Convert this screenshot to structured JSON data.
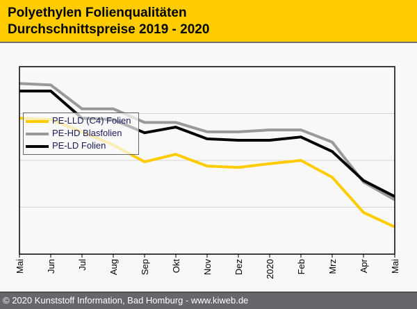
{
  "header": {
    "title_line1": "Polyethylen Folienqualitäten",
    "title_line2": "Durchschnittspreise 2019 - 2020"
  },
  "footer": {
    "text": "© 2020 Kunststoff Information, Bad Homburg - www.kiweb.de"
  },
  "colors": {
    "header_bg": "#ffcc00",
    "footer_bg": "#66676c",
    "pe_lld": "#ffcc00",
    "pe_hd": "#999999",
    "pe_ld": "#000000"
  },
  "chart_data": {
    "type": "line",
    "title": "Polyethylen Folienqualitäten Durchschnittspreise 2019 - 2020",
    "xlabel": "",
    "ylabel": "",
    "categories": [
      "Mai",
      "Jun",
      "Jul",
      "Aug",
      "Sep",
      "Okt",
      "Nov",
      "Dez",
      "2020",
      "Feb",
      "Mrz",
      "Apr",
      "Mai"
    ],
    "ylim": [
      0,
      4
    ],
    "y_gridlines": [
      1,
      2,
      3
    ],
    "y_tick_labels_shown": false,
    "legend_position": "top-left",
    "series": [
      {
        "name": "PE-LLD (C4) Folien",
        "color": "#ffcc00",
        "values": [
          2.9,
          2.87,
          2.61,
          2.33,
          1.97,
          2.13,
          1.88,
          1.85,
          1.93,
          2.0,
          1.64,
          0.89,
          0.58
        ]
      },
      {
        "name": "PE-HD Blasfolien",
        "color": "#999999",
        "values": [
          3.64,
          3.61,
          3.1,
          3.1,
          2.81,
          2.81,
          2.61,
          2.61,
          2.65,
          2.65,
          2.39,
          1.54,
          1.16
        ]
      },
      {
        "name": "PE-LD Folien",
        "color": "#000000",
        "values": [
          3.48,
          3.48,
          2.9,
          2.87,
          2.59,
          2.71,
          2.46,
          2.43,
          2.43,
          2.5,
          2.19,
          1.57,
          1.23
        ]
      }
    ]
  }
}
